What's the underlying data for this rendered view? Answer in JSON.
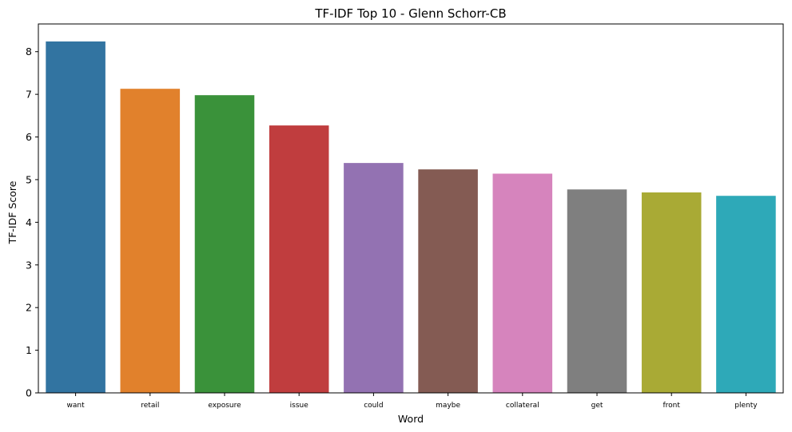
{
  "chart_data": {
    "type": "bar",
    "title": "TF-IDF Top 10 - Glenn Schorr-CB",
    "xlabel": "Word",
    "ylabel": "TF-IDF Score",
    "categories": [
      "want",
      "retail",
      "exposure",
      "issue",
      "could",
      "maybe",
      "collateral",
      "get",
      "front",
      "plenty"
    ],
    "values": [
      8.24,
      7.13,
      6.98,
      6.27,
      5.39,
      5.24,
      5.14,
      4.77,
      4.7,
      4.62
    ],
    "colors": [
      "#3274a1",
      "#e1812c",
      "#3a923a",
      "#c03d3e",
      "#9372b2",
      "#845b53",
      "#d684bd",
      "#7f7f7f",
      "#a9aa35",
      "#2ea9b8"
    ],
    "ylim": [
      0,
      8.65
    ],
    "yticks": [
      0,
      1,
      2,
      3,
      4,
      5,
      6,
      7,
      8
    ],
    "grid": false,
    "legend": "none"
  }
}
